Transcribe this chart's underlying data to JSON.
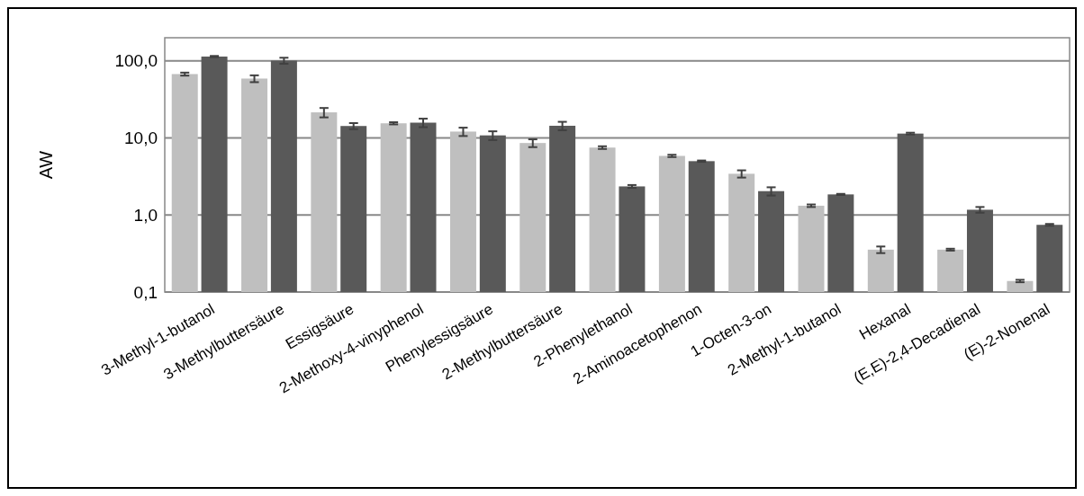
{
  "chart_data": {
    "type": "bar",
    "ylabel": "AW",
    "log": "y",
    "grid": "y",
    "categories": [
      "3-Methyl-1-butanol",
      "3-Methylbuttersäure",
      "Essigsäure",
      "2-Methoxy-4-vinyphenol",
      "Phenylessigsäure",
      "2-Methylbuttersäure",
      "2-Phenylethanol",
      "2-Aminoacetophenon",
      "1-Octen-3-on",
      "2-Methyl-1-butanol",
      "Hexanal",
      "(E,E)-2,4-Decadienal",
      "(E)-2-Nonenal"
    ],
    "ylim": [
      0.1,
      200
    ],
    "yticks": [
      {
        "value": 0.1,
        "label": "0,1"
      },
      {
        "value": 1,
        "label": "1,0"
      },
      {
        "value": 10,
        "label": "10,0"
      },
      {
        "value": 100,
        "label": "100,0"
      }
    ],
    "series": [
      {
        "color": "#bfbfbf",
        "values": [
          67.5,
          59,
          21.5,
          15.5,
          12.1,
          8.6,
          7.5,
          5.85,
          3.43,
          1.32,
          0.355,
          0.355,
          0.139
        ],
        "errors": [
          3,
          6,
          3,
          0.5,
          1.5,
          1,
          0.3,
          0.2,
          0.37,
          0.05,
          0.035,
          0.01,
          0.005
        ]
      },
      {
        "color": "#595959",
        "values": [
          114,
          101,
          14.3,
          15.8,
          10.8,
          14.4,
          2.35,
          5.0,
          2.04,
          1.85,
          11.4,
          1.17,
          0.745
        ],
        "errors": [
          2,
          9,
          1.3,
          2,
          1.4,
          1.8,
          0.1,
          0.1,
          0.25,
          0.03,
          0.3,
          0.1,
          0.02
        ]
      }
    ]
  }
}
